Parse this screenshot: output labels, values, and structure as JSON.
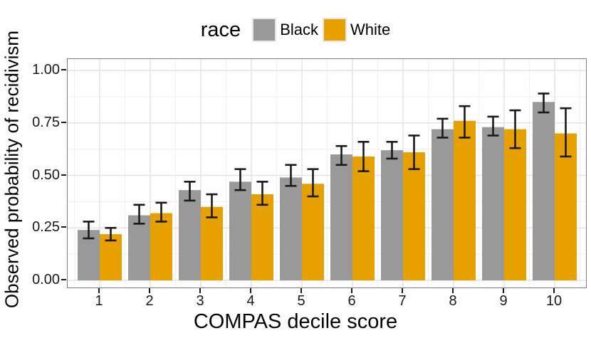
{
  "figure": {
    "background": "#ffffff"
  },
  "legend": {
    "title": "race"
  },
  "chart_data": {
    "type": "bar",
    "grouped": true,
    "error_bars": true,
    "title": "",
    "xlabel": "COMPAS decile score",
    "ylabel": "Observed probability of recidivism",
    "legend_title": "race",
    "legend_position": "top-center",
    "grid": true,
    "categories": [
      "1",
      "2",
      "3",
      "4",
      "5",
      "6",
      "7",
      "8",
      "9",
      "10"
    ],
    "series": [
      {
        "name": "Black",
        "color": "#999999",
        "values": [
          0.24,
          0.31,
          0.43,
          0.47,
          0.49,
          0.6,
          0.62,
          0.72,
          0.73,
          0.85
        ],
        "ci_low": [
          0.2,
          0.27,
          0.38,
          0.43,
          0.45,
          0.55,
          0.58,
          0.68,
          0.69,
          0.8
        ],
        "ci_high": [
          0.28,
          0.36,
          0.47,
          0.53,
          0.55,
          0.64,
          0.66,
          0.77,
          0.78,
          0.89
        ]
      },
      {
        "name": "White",
        "color": "#E6A000",
        "values": [
          0.22,
          0.32,
          0.35,
          0.41,
          0.46,
          0.59,
          0.61,
          0.76,
          0.72,
          0.7
        ],
        "ci_low": [
          0.19,
          0.28,
          0.3,
          0.36,
          0.4,
          0.52,
          0.53,
          0.68,
          0.63,
          0.59
        ],
        "ci_high": [
          0.25,
          0.37,
          0.41,
          0.47,
          0.53,
          0.66,
          0.69,
          0.83,
          0.81,
          0.82
        ]
      }
    ],
    "y_ticks": [
      {
        "label": "0.00",
        "value": 0.0
      },
      {
        "label": "0.25",
        "value": 0.25
      },
      {
        "label": "0.50",
        "value": 0.5
      },
      {
        "label": "0.75",
        "value": 0.75
      },
      {
        "label": "1.00",
        "value": 1.0
      }
    ],
    "ylim": [
      0,
      1
    ]
  }
}
